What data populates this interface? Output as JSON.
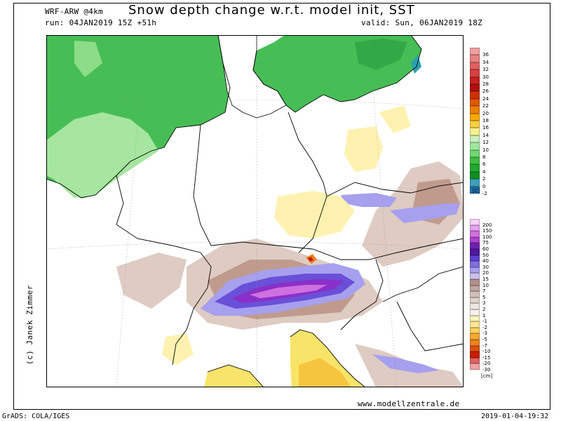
{
  "header": {
    "model": "WRF-ARW @4km",
    "title": "Snow depth change w.r.t. model init, SST",
    "run": "run: 04JAN2019 15Z +51h",
    "valid": "valid: Sun, 06JAN2019 18Z"
  },
  "credit": "(c) Janek Zimmer",
  "website": "www.modellzentrale.de",
  "footer": {
    "software": "GrADS: COLA/IGES",
    "timestamp": "2019-01-04-19:32"
  },
  "sst_legend": {
    "unit": "[C]",
    "labels": [
      "36",
      "34",
      "32",
      "30",
      "28",
      "26",
      "24",
      "22",
      "20",
      "18",
      "16",
      "14",
      "12",
      "10",
      "8",
      "6",
      "4",
      "2",
      "0",
      "-2"
    ],
    "colors": [
      "#f0a0a0",
      "#e98080",
      "#e06060",
      "#d84040",
      "#c82020",
      "#b01010",
      "#d03000",
      "#e05800",
      "#f08000",
      "#f8a800",
      "#f8d040",
      "#f8f090",
      "#c8f0c0",
      "#a0e8a0",
      "#70d870",
      "#40c040",
      "#20a830",
      "#109020",
      "#3aa0b8",
      "#2070b0"
    ]
  },
  "snow_legend": {
    "unit": "[cm]",
    "labels": [
      "200",
      "150",
      "100",
      "75",
      "60",
      "50",
      "40",
      "30",
      "20",
      "15",
      "10",
      "7",
      "5",
      "3",
      "2",
      "1",
      "-1",
      "-2",
      "-3",
      "-5",
      "-7",
      "-10",
      "-15",
      "-20",
      "-30"
    ],
    "colors": [
      "#f8d0f8",
      "#e8a0f0",
      "#d070e0",
      "#b040d0",
      "#7020b0",
      "#5018a0",
      "#6040d0",
      "#8070e0",
      "#a8a0f0",
      "#c8c0f0",
      "#b09088",
      "#c0a8a0",
      "#d0c0b8",
      "#e0d4cc",
      "#eee6e0",
      "#f6f2ee",
      "#fff6c0",
      "#ffe890",
      "#ffd060",
      "#f8a830",
      "#f08020",
      "#e05010",
      "#c82000",
      "#e06060",
      "#f0a0a0"
    ]
  }
}
